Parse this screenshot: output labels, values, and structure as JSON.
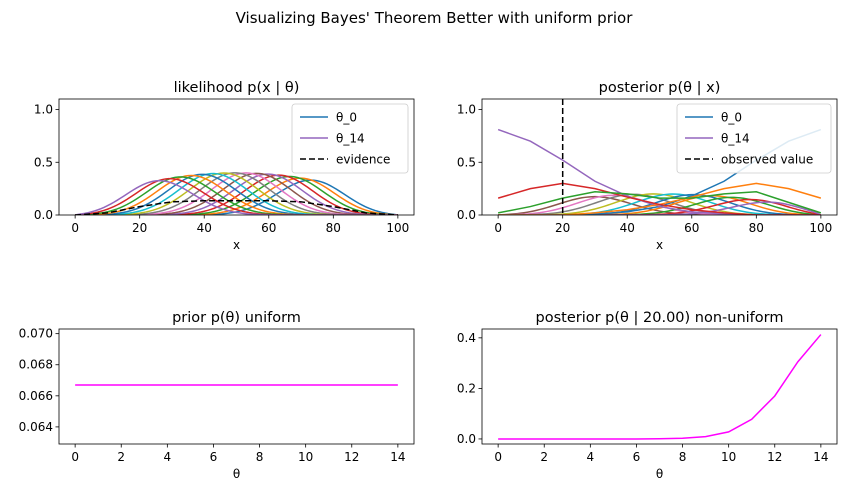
{
  "figure": {
    "suptitle": "Visualizing Bayes' Theorem Better with uniform prior"
  },
  "chart_data": [
    {
      "id": "likelihood",
      "type": "line",
      "title": "likelihood p(x | θ)",
      "xlabel": "x",
      "ylabel": "",
      "xlim": [
        -5,
        105
      ],
      "ylim": [
        0,
        1.1
      ],
      "xticks": [
        0,
        20,
        40,
        60,
        80,
        100
      ],
      "yticks": [
        0.0,
        0.5,
        1.0
      ],
      "ytick_labels": [
        "0.0",
        "0.5",
        "1.0"
      ],
      "grid": false,
      "legend_position": "upper right",
      "legend": [
        {
          "label": "θ_0",
          "color": "#1f77b4",
          "style": "solid"
        },
        {
          "label": "θ_14",
          "color": "#9467bd",
          "style": "solid"
        },
        {
          "label": "evidence",
          "color": "#000000",
          "style": "dashed"
        }
      ],
      "family": {
        "count": 15,
        "description_values": "each curve is a bump from x=0 to x=100 with peak ~0.4; curve k peaks near x = 75 - 3.5*k",
        "peak_value": 0.4,
        "peak_x_first": 75,
        "peak_x_last": 24,
        "colors": [
          "#1f77b4",
          "#ff7f0e",
          "#2ca02c",
          "#d62728",
          "#9467bd",
          "#8c564b",
          "#e377c2",
          "#7f7f7f",
          "#bcbd22",
          "#17becf",
          "#1f77b4",
          "#ff7f0e",
          "#2ca02c",
          "#d62728",
          "#9467bd"
        ]
      },
      "evidence": {
        "x": [
          0,
          10,
          20,
          30,
          40,
          50,
          60,
          70,
          80,
          90,
          100
        ],
        "y": [
          0,
          0.02,
          0.08,
          0.125,
          0.135,
          0.135,
          0.135,
          0.125,
          0.08,
          0.02,
          0
        ]
      }
    },
    {
      "id": "posterior",
      "type": "line",
      "title": "posterior p(θ  | x)",
      "xlabel": "x",
      "ylabel": "",
      "xlim": [
        -5,
        105
      ],
      "ylim": [
        0,
        1.1
      ],
      "xticks": [
        0,
        20,
        40,
        60,
        80,
        100
      ],
      "yticks": [
        0.0,
        0.5,
        1.0
      ],
      "ytick_labels": [
        "0.0",
        "0.5",
        "1.0"
      ],
      "grid": false,
      "legend_position": "upper right",
      "legend": [
        {
          "label": "θ_0",
          "color": "#1f77b4",
          "style": "solid"
        },
        {
          "label": "θ_14",
          "color": "#9467bd",
          "style": "solid"
        },
        {
          "label": "observed value",
          "color": "#000000",
          "style": "dashed"
        }
      ],
      "observed_value": 20,
      "highlight_series": [
        {
          "name": "θ_0",
          "color": "#1f77b4",
          "x": [
            0,
            10,
            20,
            30,
            40,
            50,
            60,
            70,
            80,
            90,
            100
          ],
          "y": [
            0.0,
            0.0,
            0.0,
            0.01,
            0.03,
            0.08,
            0.18,
            0.32,
            0.52,
            0.7,
            0.81
          ]
        },
        {
          "name": "θ_14",
          "color": "#9467bd",
          "x": [
            0,
            10,
            20,
            30,
            40,
            50,
            60,
            70,
            80,
            90,
            100
          ],
          "y": [
            0.81,
            0.7,
            0.52,
            0.32,
            0.18,
            0.08,
            0.03,
            0.01,
            0.0,
            0.0,
            0.0
          ]
        },
        {
          "name": "",
          "color": "#ff7f0e",
          "x": [
            0,
            10,
            20,
            30,
            40,
            50,
            60,
            70,
            80,
            90,
            100
          ],
          "y": [
            0.0,
            0.0,
            0.0,
            0.02,
            0.05,
            0.1,
            0.17,
            0.25,
            0.3,
            0.25,
            0.16
          ]
        },
        {
          "name": "",
          "color": "#d62728",
          "x": [
            0,
            10,
            20,
            30,
            40,
            50,
            60,
            70,
            80,
            90,
            100
          ],
          "y": [
            0.16,
            0.25,
            0.3,
            0.25,
            0.17,
            0.1,
            0.05,
            0.02,
            0.0,
            0.0,
            0.0
          ]
        },
        {
          "name": "",
          "color": "#2ca02c",
          "x": [
            0,
            10,
            20,
            30,
            40,
            50,
            60,
            70,
            80,
            90,
            100
          ],
          "y": [
            0.02,
            0.08,
            0.16,
            0.22,
            0.2,
            0.16,
            0.16,
            0.2,
            0.22,
            0.12,
            0.02
          ]
        }
      ],
      "background_family": {
        "count": 10,
        "description_values": "mid curves ~0.2 tall between x=20 and x=90",
        "peak_value": 0.2,
        "colors": [
          "#8c564b",
          "#e377c2",
          "#7f7f7f",
          "#bcbd22",
          "#17becf",
          "#1f77b4",
          "#ff7f0e",
          "#2ca02c",
          "#d62728",
          "#9467bd"
        ]
      }
    },
    {
      "id": "prior",
      "type": "line",
      "title": "prior p(θ) uniform",
      "xlabel": "θ",
      "ylabel": "",
      "xlim": [
        -0.7,
        14.7
      ],
      "ylim": [
        0.0629,
        0.0703
      ],
      "xticks": [
        0,
        2,
        4,
        6,
        8,
        10,
        12,
        14
      ],
      "yticks": [
        0.064,
        0.066,
        0.068,
        0.07
      ],
      "ytick_labels": [
        "0.064",
        "0.066",
        "0.068",
        "0.070"
      ],
      "grid": false,
      "series": [
        {
          "name": "",
          "color": "#ff00ff",
          "x": [
            0,
            1,
            2,
            3,
            4,
            5,
            6,
            7,
            8,
            9,
            10,
            11,
            12,
            13,
            14
          ],
          "values": [
            0.0667,
            0.0667,
            0.0667,
            0.0667,
            0.0667,
            0.0667,
            0.0667,
            0.0667,
            0.0667,
            0.0667,
            0.0667,
            0.0667,
            0.0667,
            0.0667,
            0.0667
          ]
        }
      ]
    },
    {
      "id": "posterior-nonuniform",
      "type": "line",
      "title": "posterior p(θ  | 20.00) non-uniform",
      "xlabel": "θ",
      "ylabel": "",
      "xlim": [
        -0.7,
        14.7
      ],
      "ylim": [
        -0.02,
        0.435
      ],
      "xticks": [
        0,
        2,
        4,
        6,
        8,
        10,
        12,
        14
      ],
      "yticks": [
        0.0,
        0.2,
        0.4
      ],
      "ytick_labels": [
        "0.0",
        "0.2",
        "0.4"
      ],
      "grid": false,
      "series": [
        {
          "name": "",
          "color": "#ff00ff",
          "x": [
            0,
            1,
            2,
            3,
            4,
            5,
            6,
            7,
            8,
            9,
            10,
            11,
            12,
            13,
            14
          ],
          "values": [
            0.0,
            0.0,
            0.0,
            0.0,
            0.0,
            0.0,
            0.0,
            0.001,
            0.003,
            0.009,
            0.028,
            0.078,
            0.17,
            0.305,
            0.413
          ]
        }
      ]
    }
  ]
}
